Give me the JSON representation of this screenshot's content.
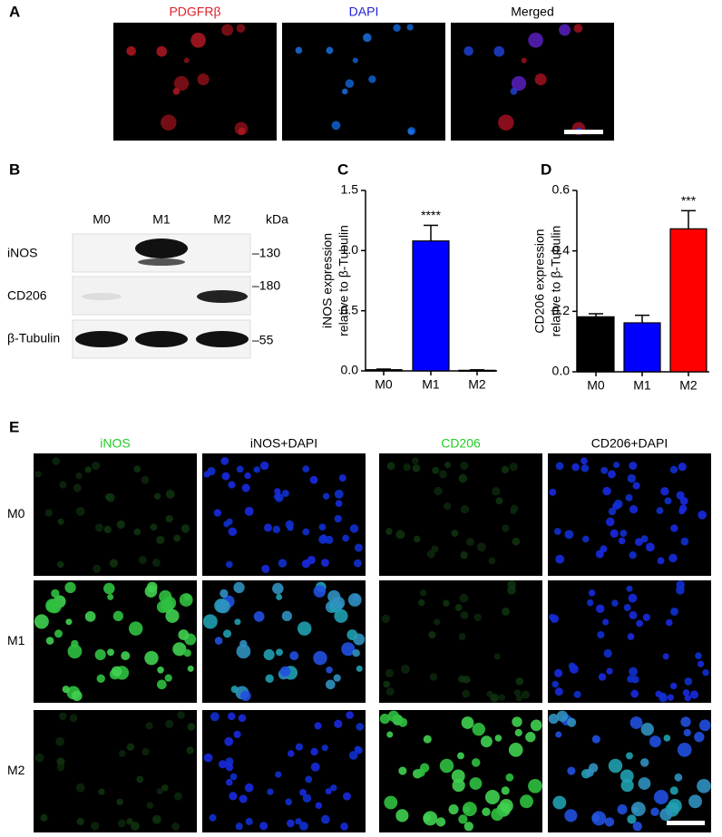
{
  "panel_labels": [
    "A",
    "B",
    "C",
    "D",
    "E"
  ],
  "panel_a": {
    "columns": [
      {
        "text": "PDGFRβ",
        "color": "#e0202a"
      },
      {
        "text": "DAPI",
        "color": "#1f1fd6"
      },
      {
        "text": "Merged",
        "color": "#000000"
      }
    ]
  },
  "panel_b": {
    "lanes": [
      "M0",
      "M1",
      "M2"
    ],
    "unit": "kDa",
    "rows": [
      {
        "name": "iNOS",
        "marker": "–130"
      },
      {
        "name": "CD206",
        "marker": "–180"
      },
      {
        "name": "β-Tubulin",
        "marker": "–55"
      }
    ]
  },
  "panel_e": {
    "columns": [
      {
        "text": "iNOS",
        "color": "#22cc22"
      },
      {
        "text": "iNOS+DAPI",
        "color": "#000000"
      },
      {
        "text": "CD206",
        "color": "#22cc22"
      },
      {
        "text": "CD206+DAPI",
        "color": "#000000"
      }
    ],
    "rows": [
      "M0",
      "M1",
      "M2"
    ]
  },
  "chart_data": [
    {
      "type": "bar",
      "ylabel": [
        "iNOS expression",
        "relative to β-Tubulin"
      ],
      "categories": [
        "M0",
        "M1",
        "M2"
      ],
      "values": [
        0.01,
        1.08,
        0.005
      ],
      "errors": [
        0.005,
        0.13,
        0.004
      ],
      "colors": [
        "#000000",
        "#0000ff",
        "#000000"
      ],
      "annotation": {
        "category": "M1",
        "text": "****"
      },
      "ylim": [
        0,
        1.5
      ],
      "yticks": [
        {
          "value": 0,
          "label": "0.0"
        },
        0.5,
        {
          "value": 1,
          "label": "1.0"
        },
        1.5
      ]
    },
    {
      "type": "bar",
      "ylabel": [
        "CD206 expression",
        "relative to β-Tubulin"
      ],
      "categories": [
        "M0",
        "M1",
        "M2"
      ],
      "values": [
        0.182,
        0.162,
        0.473
      ],
      "errors": [
        0.01,
        0.025,
        0.06
      ],
      "colors": [
        "#000000",
        "#0000ff",
        "#ff0000"
      ],
      "annotation": {
        "category": "M2",
        "text": "***"
      },
      "ylim": [
        0,
        0.6
      ],
      "yticks": [
        {
          "value": 0,
          "label": "0.0"
        },
        0.2,
        0.4,
        0.6
      ]
    }
  ]
}
